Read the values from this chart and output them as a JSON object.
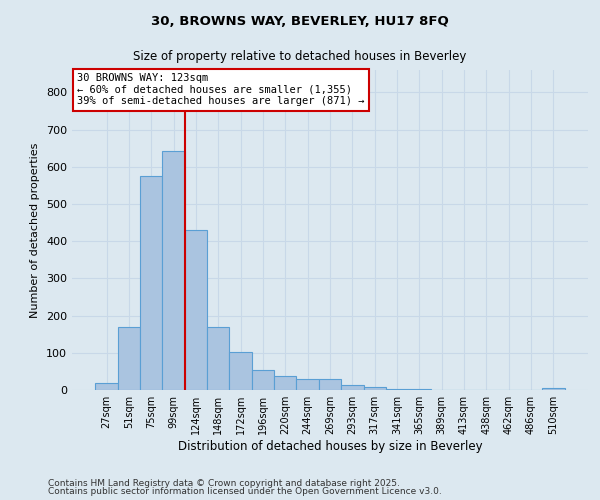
{
  "title1": "30, BROWNS WAY, BEVERLEY, HU17 8FQ",
  "title2": "Size of property relative to detached houses in Beverley",
  "xlabel": "Distribution of detached houses by size in Beverley",
  "ylabel": "Number of detached properties",
  "categories": [
    "27sqm",
    "51sqm",
    "75sqm",
    "99sqm",
    "124sqm",
    "148sqm",
    "172sqm",
    "196sqm",
    "220sqm",
    "244sqm",
    "269sqm",
    "293sqm",
    "317sqm",
    "341sqm",
    "365sqm",
    "389sqm",
    "413sqm",
    "438sqm",
    "462sqm",
    "486sqm",
    "510sqm"
  ],
  "values": [
    20,
    168,
    575,
    643,
    430,
    170,
    103,
    55,
    38,
    30,
    30,
    13,
    8,
    4,
    4,
    0,
    0,
    0,
    0,
    0,
    5
  ],
  "bar_color": "#aac4e0",
  "bar_edge_color": "#5a9fd4",
  "vline_idx": 3.5,
  "vline_color": "#cc0000",
  "annotation_text": "30 BROWNS WAY: 123sqm\n← 60% of detached houses are smaller (1,355)\n39% of semi-detached houses are larger (871) →",
  "annotation_box_color": "#ffffff",
  "annotation_box_edgecolor": "#cc0000",
  "ylim": [
    0,
    860
  ],
  "yticks": [
    0,
    100,
    200,
    300,
    400,
    500,
    600,
    700,
    800
  ],
  "grid_color": "#c8d8e8",
  "bg_color": "#dce8f0",
  "footer1": "Contains HM Land Registry data © Crown copyright and database right 2025.",
  "footer2": "Contains public sector information licensed under the Open Government Licence v3.0."
}
